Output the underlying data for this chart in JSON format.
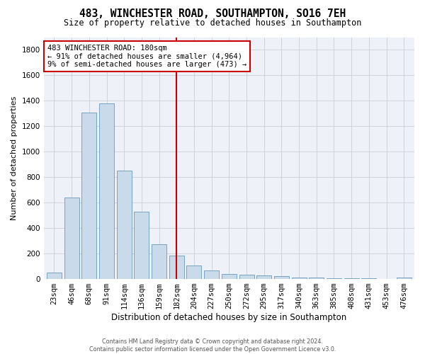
{
  "title": "483, WINCHESTER ROAD, SOUTHAMPTON, SO16 7EH",
  "subtitle": "Size of property relative to detached houses in Southampton",
  "xlabel": "Distribution of detached houses by size in Southampton",
  "ylabel": "Number of detached properties",
  "footer_line1": "Contains HM Land Registry data © Crown copyright and database right 2024.",
  "footer_line2": "Contains public sector information licensed under the Open Government Licence v3.0.",
  "bar_labels": [
    "23sqm",
    "46sqm",
    "68sqm",
    "91sqm",
    "114sqm",
    "136sqm",
    "159sqm",
    "182sqm",
    "204sqm",
    "227sqm",
    "250sqm",
    "272sqm",
    "295sqm",
    "317sqm",
    "340sqm",
    "363sqm",
    "385sqm",
    "408sqm",
    "431sqm",
    "453sqm",
    "476sqm"
  ],
  "bar_values": [
    50,
    640,
    1310,
    1380,
    850,
    530,
    275,
    185,
    105,
    65,
    40,
    35,
    30,
    20,
    10,
    10,
    5,
    5,
    5,
    0,
    10
  ],
  "bar_color": "#c9daea",
  "bar_edge_color": "#6699bb",
  "vline_color": "#cc0000",
  "annotation_text": "483 WINCHESTER ROAD: 180sqm\n← 91% of detached houses are smaller (4,964)\n9% of semi-detached houses are larger (473) →",
  "annotation_box_color": "#cc0000",
  "ylim": [
    0,
    1900
  ],
  "yticks": [
    0,
    200,
    400,
    600,
    800,
    1000,
    1200,
    1400,
    1600,
    1800
  ],
  "bg_color": "#eef2f8",
  "grid_color": "#c8cdd8",
  "title_fontsize": 10.5,
  "subtitle_fontsize": 8.5,
  "xlabel_fontsize": 8.5,
  "ylabel_fontsize": 8.0,
  "tick_fontsize": 7.5,
  "annot_fontsize": 7.5,
  "footer_fontsize": 5.8
}
